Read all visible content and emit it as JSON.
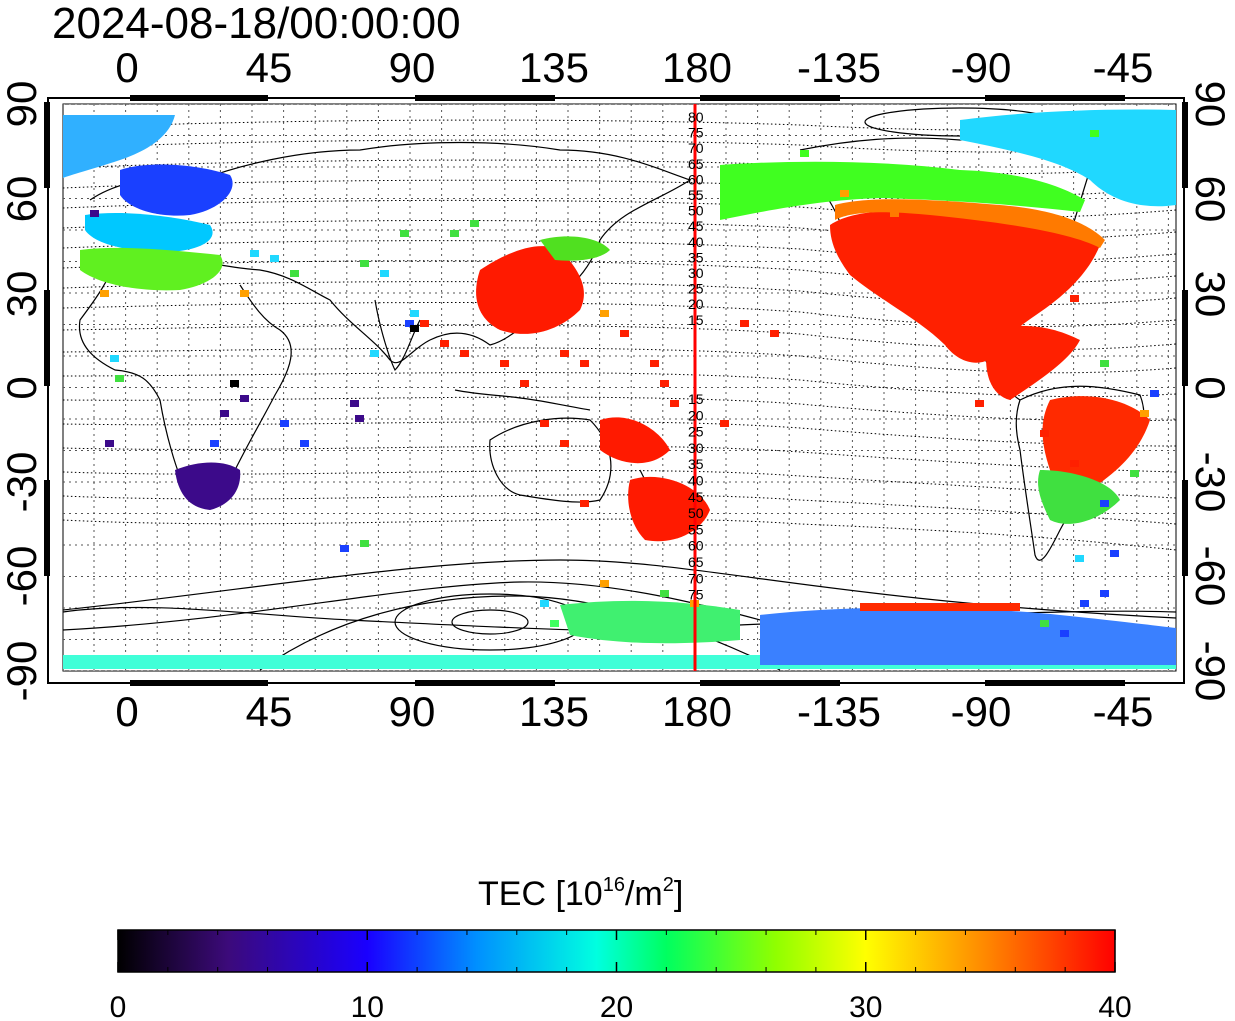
{
  "title": "2024-08-18/00:00:00",
  "map": {
    "x_ticks_top": [
      "0",
      "45",
      "90",
      "135",
      "180",
      "-135",
      "-90",
      "-45"
    ],
    "x_ticks_bottom": [
      "0",
      "45",
      "90",
      "135",
      "180",
      "-135",
      "-90",
      "-45"
    ],
    "y_ticks_left": [
      "90",
      "60",
      "30",
      "0",
      "-30",
      "-60",
      "-90"
    ],
    "y_ticks_right": [
      "90",
      "60",
      "30",
      "0",
      "-30",
      "-60",
      "-90"
    ],
    "meridian_labels_north": [
      "80",
      "75",
      "70",
      "65",
      "60",
      "55",
      "50",
      "45",
      "40",
      "35",
      "30",
      "25",
      "20",
      "15"
    ],
    "meridian_labels_south": [
      "15",
      "20",
      "25",
      "30",
      "35",
      "40",
      "45",
      "50",
      "55",
      "60",
      "65",
      "70",
      "75"
    ],
    "colors": {
      "meridian_line": "#ff0000",
      "colormap": [
        "#000000",
        "#3c0a7a",
        "#1a00ff",
        "#0090ff",
        "#00ffe0",
        "#00ff30",
        "#a0ff00",
        "#ffff00",
        "#ff8800",
        "#ff0000"
      ]
    }
  },
  "colorbar": {
    "title_prefix": "TEC  [10",
    "title_exp1": "16",
    "title_mid": "/m",
    "title_exp2": "2",
    "title_suffix": "]",
    "tick_labels": [
      "0",
      "10",
      "20",
      "30",
      "40"
    ],
    "min": 0,
    "max": 40
  }
}
